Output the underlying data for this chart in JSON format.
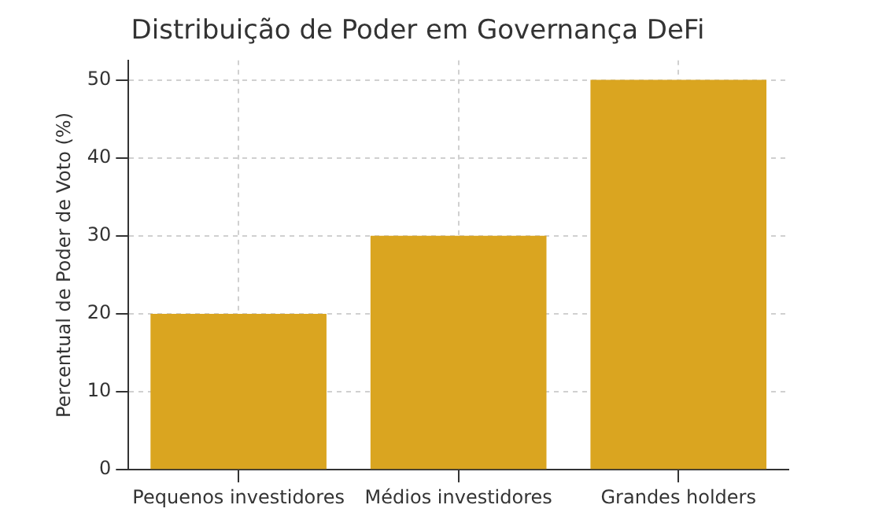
{
  "chart_data": {
    "type": "bar",
    "title": "Distribuição de Poder em Governança DeFi",
    "ylabel": "Percentual de Poder de Voto (%)",
    "categories": [
      "Pequenos investidores",
      "Médios investidores",
      "Grandes holders"
    ],
    "values": [
      20,
      30,
      50
    ],
    "color": "#daa520",
    "ylim": [
      0,
      52.5
    ],
    "yticks": [
      0,
      10,
      20,
      30,
      40,
      50
    ],
    "grid": true
  }
}
